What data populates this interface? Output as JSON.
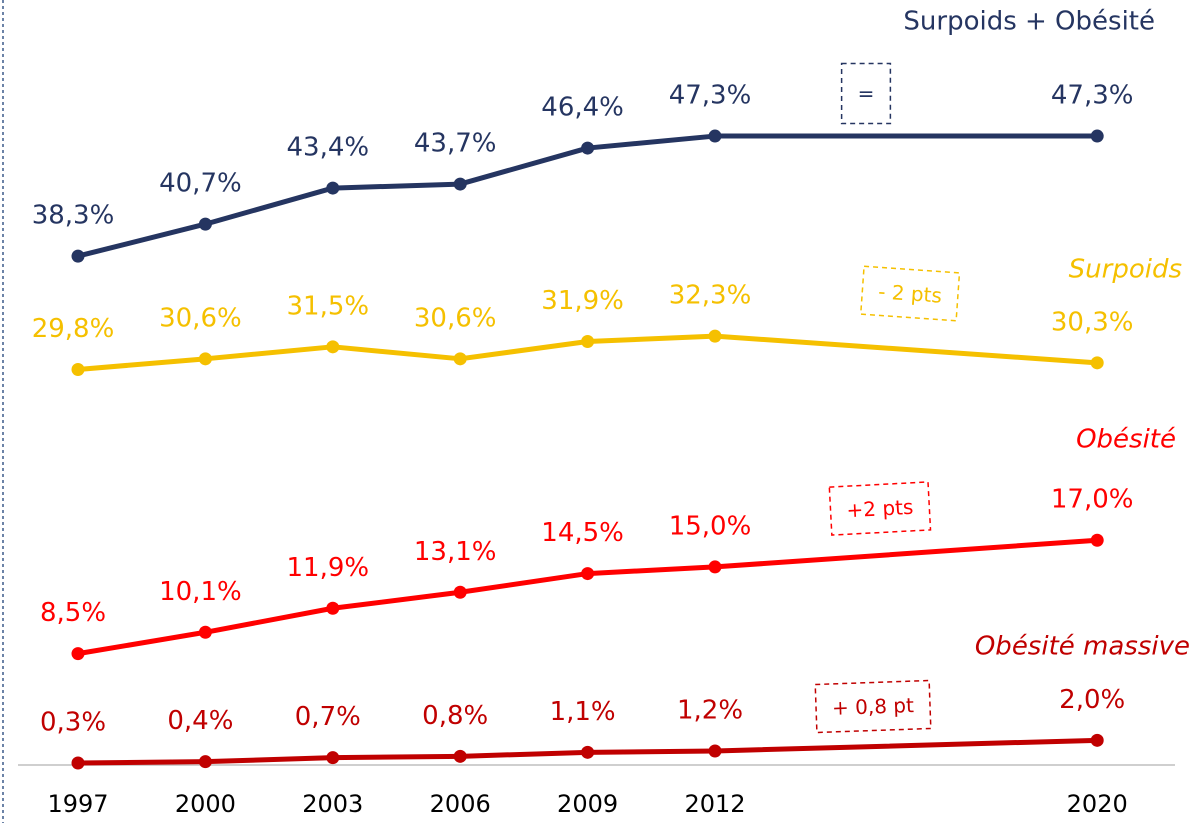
{
  "chart_data": {
    "type": "line",
    "categories": [
      "1997",
      "2000",
      "2003",
      "2006",
      "2009",
      "2012",
      null,
      null,
      "2020"
    ],
    "ylim": [
      0,
      57.5
    ],
    "series": [
      {
        "name": "Surpoids + Obésité",
        "color": "#253561",
        "italic": false,
        "annotation": "=",
        "values": [
          38.3,
          40.7,
          43.4,
          43.7,
          46.4,
          47.3,
          null,
          null,
          47.3
        ],
        "value_labels": [
          "38,3%",
          "40,7%",
          "43,4%",
          "43,7%",
          "46,4%",
          "47,3%",
          null,
          null,
          "47,3%"
        ]
      },
      {
        "name": "Surpoids",
        "color": "#f5c000",
        "italic": true,
        "annotation": "- 2 pts",
        "values": [
          29.8,
          30.6,
          31.5,
          30.6,
          31.9,
          32.3,
          null,
          null,
          30.3
        ],
        "value_labels": [
          "29,8%",
          "30,6%",
          "31,5%",
          "30,6%",
          "31,9%",
          "32,3%",
          null,
          null,
          "30,3%"
        ]
      },
      {
        "name": "Obésité",
        "color": "#ff0000",
        "italic": true,
        "annotation": "+2 pts",
        "values": [
          8.5,
          10.1,
          11.9,
          13.1,
          14.5,
          15.0,
          null,
          null,
          17.0
        ],
        "value_labels": [
          "8,5%",
          "10,1%",
          "11,9%",
          "13,1%",
          "14,5%",
          "15,0%",
          null,
          null,
          "17,0%"
        ]
      },
      {
        "name": "Obésité massive",
        "color": "#c00000",
        "italic": true,
        "annotation": "+ 0,8 pt",
        "values": [
          0.3,
          0.4,
          0.7,
          0.8,
          1.1,
          1.2,
          null,
          null,
          2.0
        ],
        "value_labels": [
          "0,3%",
          "0,4%",
          "0,7%",
          "0,8%",
          "1,1%",
          "1,2%",
          null,
          null,
          "2,0%"
        ]
      }
    ]
  }
}
